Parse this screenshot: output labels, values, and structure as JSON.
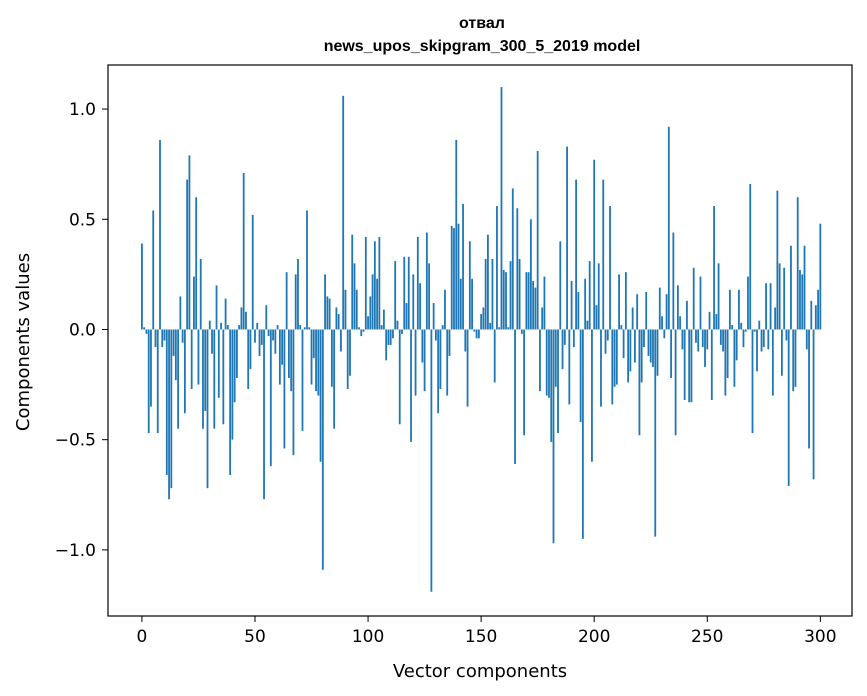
{
  "chart_data": {
    "type": "bar",
    "title_line1": "отвал",
    "title_line2": "news_upos_skipgram_300_5_2019 model",
    "xlabel": "Vector components",
    "ylabel": "Components values",
    "xlim": [
      -15,
      314
    ],
    "ylim": [
      -1.3,
      1.2
    ],
    "xticks": [
      0,
      50,
      100,
      150,
      200,
      250,
      300
    ],
    "xtick_labels": [
      "0",
      "50",
      "100",
      "150",
      "200",
      "250",
      "300"
    ],
    "yticks": [
      -1.0,
      -0.5,
      0.0,
      0.5,
      1.0
    ],
    "ytick_labels": [
      "−1.0",
      "−0.5",
      "0.0",
      "0.5",
      "1.0"
    ],
    "bar_color": "#1f77b4",
    "grid": false,
    "values": [
      0.39,
      0.01,
      -0.02,
      -0.47,
      -0.35,
      0.54,
      -0.08,
      -0.47,
      0.86,
      -0.08,
      -0.05,
      -0.66,
      -0.77,
      -0.72,
      -0.12,
      -0.23,
      -0.45,
      0.15,
      -0.06,
      -0.38,
      0.68,
      0.79,
      -0.27,
      0.24,
      0.6,
      -0.25,
      0.32,
      -0.45,
      -0.37,
      -0.72,
      0.04,
      -0.11,
      -0.45,
      0.2,
      -0.31,
      0.03,
      -0.43,
      0.14,
      0.02,
      -0.66,
      -0.5,
      -0.33,
      -0.22,
      0.02,
      0.1,
      0.71,
      0.08,
      -0.27,
      -0.18,
      0.52,
      -0.06,
      0.03,
      -0.12,
      -0.07,
      -0.77,
      0.11,
      -0.03,
      -0.62,
      -0.05,
      -0.11,
      0.02,
      -0.25,
      -0.16,
      -0.54,
      0.26,
      -0.22,
      -0.28,
      -0.57,
      0.25,
      0.32,
      0.02,
      -0.46,
      0.01,
      0.54,
      0.01,
      -0.25,
      -0.13,
      -0.28,
      -0.3,
      -0.6,
      -1.09,
      0.25,
      0.15,
      0.14,
      -0.26,
      -0.45,
      0.1,
      0.07,
      -0.1,
      1.06,
      0.18,
      -0.27,
      -0.21,
      0.43,
      0.3,
      0.18,
      0.01,
      -0.03,
      -0.01,
      0.42,
      0.06,
      0.15,
      0.25,
      0.4,
      0.23,
      0.42,
      0.02,
      0.09,
      -0.14,
      -0.07,
      -0.07,
      -0.04,
      0.31,
      0.04,
      -0.43,
      -0.02,
      0.33,
      0.12,
      0.33,
      -0.51,
      0.25,
      -0.3,
      0.42,
      0.21,
      -0.15,
      -0.28,
      0.44,
      0.3,
      -1.19,
      0.12,
      -0.05,
      -0.38,
      -0.27,
      0.02,
      0.18,
      -0.3,
      -0.12,
      0.47,
      0.46,
      0.86,
      0.48,
      0.23,
      0.57,
      -0.1,
      -0.35,
      0.4,
      0.23,
      -0.01,
      -0.04,
      -0.04,
      0.07,
      0.1,
      0.32,
      0.43,
      0.03,
      0.32,
      -0.24,
      0.56,
      0.01,
      1.1,
      0.27,
      0.26,
      0.01,
      0.31,
      0.64,
      -0.61,
      0.55,
      0.32,
      -0.02,
      -0.48,
      0.26,
      0.26,
      0.5,
      0.22,
      0.19,
      0.81,
      -0.28,
      0.1,
      0.24,
      -0.3,
      -0.31,
      -0.51,
      -0.97,
      -0.26,
      -0.47,
      0.4,
      -0.18,
      -0.07,
      0.83,
      -0.34,
      0.22,
      -0.08,
      0.68,
      0.17,
      -0.42,
      -0.95,
      0.23,
      0.04,
      0.31,
      -0.6,
      0.77,
      0.11,
      0.3,
      -0.35,
      0.68,
      -0.11,
      -0.05,
      0.56,
      -0.34,
      -0.26,
      -0.25,
      0.25,
      0.02,
      -0.13,
      0.26,
      -0.24,
      -0.19,
      0.1,
      -0.15,
      0.16,
      -0.48,
      -0.24,
      -0.08,
      0.17,
      -0.12,
      -0.15,
      -0.17,
      -0.94,
      -0.21,
      0.19,
      0.06,
      -0.04,
      0.16,
      0.92,
      -0.22,
      0.44,
      -0.48,
      0.2,
      0.06,
      -0.09,
      -0.32,
      0.13,
      -0.33,
      -0.33,
      0.28,
      -0.06,
      -0.1,
      0.24,
      -0.08,
      -0.17,
      -0.09,
      0.08,
      -0.32,
      0.56,
      0.07,
      0.3,
      -0.07,
      -0.1,
      -0.3,
      -0.22,
      0.18,
      0.02,
      -0.26,
      -0.14,
      0.18,
      0.03,
      -0.08,
      -0.01,
      0.24,
      0.66,
      -0.47,
      -0.01,
      -0.19,
      0.04,
      -0.1,
      -0.08,
      0.21,
      -0.09,
      0.21,
      -0.3,
      0.1,
      0.63,
      0.3,
      -0.21,
      0.28,
      -0.05,
      -0.71,
      0.38,
      -0.28,
      -0.26,
      0.6,
      0.27,
      0.25,
      0.38,
      -0.09,
      -0.54,
      0.13,
      -0.68,
      0.11,
      0.18,
      0.48
    ]
  }
}
